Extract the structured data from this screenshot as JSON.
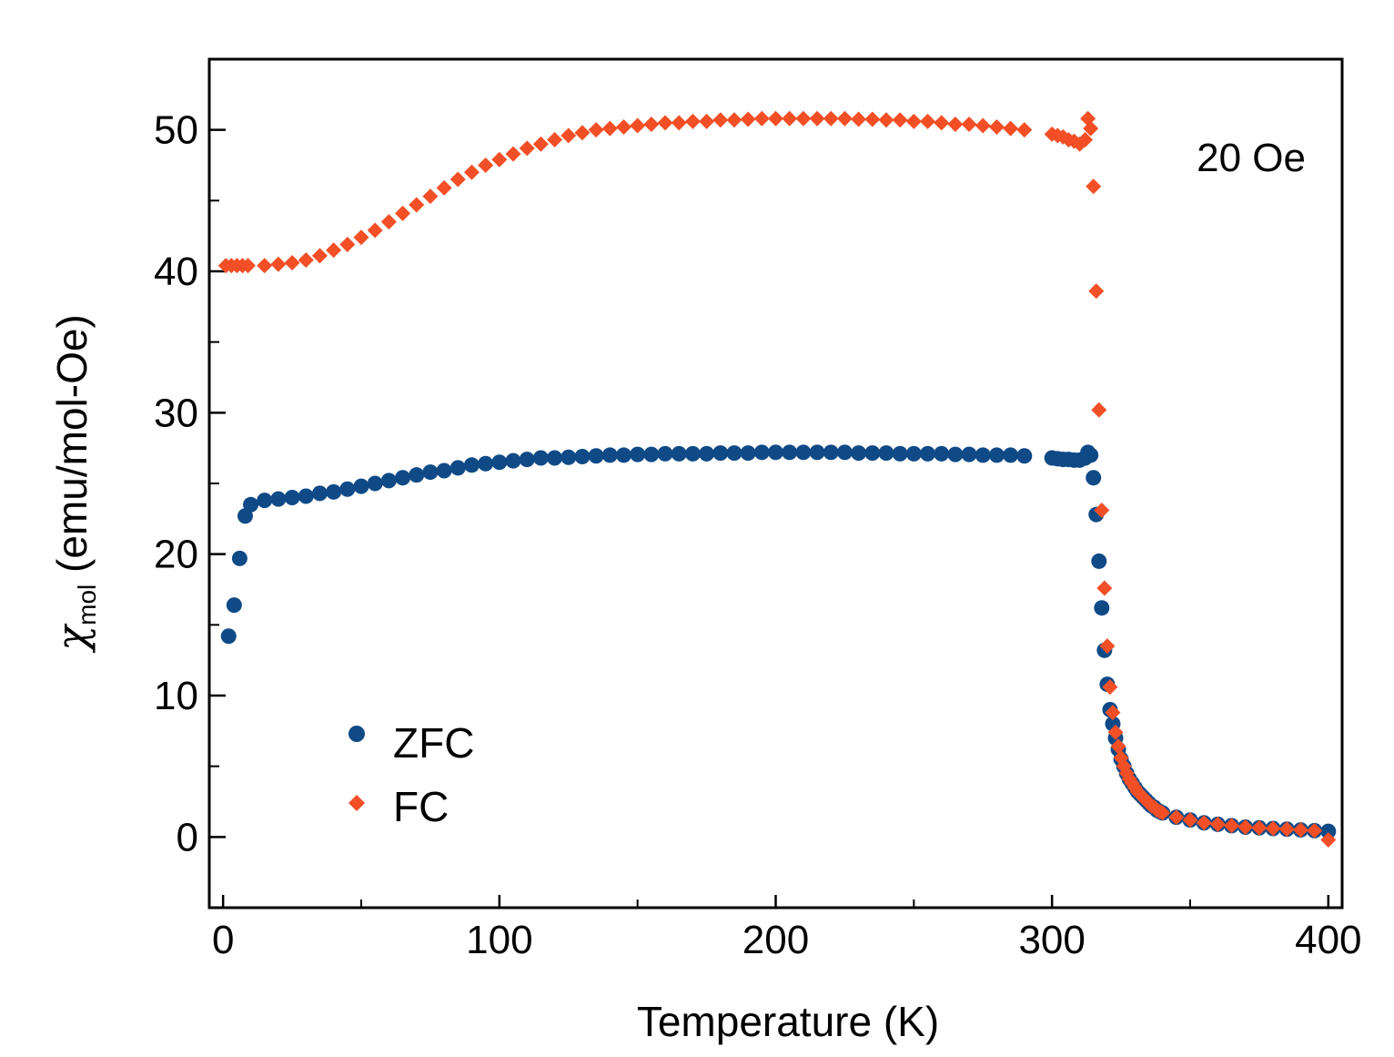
{
  "chart_data": {
    "type": "scatter",
    "title": "",
    "xlabel": "Temperature (K)",
    "ylabel": {
      "symbol": "χ",
      "subscript": "mol",
      "units": " (emu/mol-Oe)"
    },
    "annotation": "20 Oe",
    "xlim": [
      -5,
      405
    ],
    "ylim": [
      -5,
      55
    ],
    "x_ticks": [
      0,
      100,
      200,
      300,
      400
    ],
    "x_tick_labels": [
      "0",
      "100",
      "200",
      "300",
      "400"
    ],
    "x_minor_ticks": [
      50,
      150,
      250,
      350
    ],
    "y_ticks": [
      0,
      10,
      20,
      30,
      40,
      50
    ],
    "y_tick_labels": [
      "0",
      "10",
      "20",
      "30",
      "40",
      "50"
    ],
    "y_minor_ticks": [
      5,
      15,
      25,
      35,
      45
    ],
    "legend_position": "bottom-left",
    "series": [
      {
        "name": "ZFC",
        "marker": "circle",
        "color": "#0f4a87",
        "x": [
          2,
          4,
          6,
          8,
          10,
          15,
          20,
          25,
          30,
          35,
          40,
          45,
          50,
          55,
          60,
          65,
          70,
          75,
          80,
          85,
          90,
          95,
          100,
          105,
          110,
          115,
          120,
          125,
          130,
          135,
          140,
          145,
          150,
          155,
          160,
          165,
          170,
          175,
          180,
          185,
          190,
          195,
          200,
          205,
          210,
          215,
          220,
          225,
          230,
          235,
          240,
          245,
          250,
          255,
          260,
          265,
          270,
          275,
          280,
          285,
          290,
          300,
          302,
          304,
          306,
          308,
          310,
          312,
          313,
          314,
          315,
          316,
          317,
          318,
          319,
          320,
          321,
          322,
          323,
          324,
          325,
          326,
          327,
          328,
          329,
          330,
          331,
          332,
          333,
          334,
          335,
          336,
          337,
          338,
          339,
          340,
          345,
          350,
          355,
          360,
          365,
          370,
          375,
          380,
          385,
          390,
          395,
          400
        ],
        "y": [
          14.2,
          16.4,
          19.7,
          22.7,
          23.5,
          23.8,
          23.9,
          24.0,
          24.1,
          24.3,
          24.4,
          24.6,
          24.8,
          25.0,
          25.2,
          25.4,
          25.6,
          25.8,
          25.9,
          26.1,
          26.3,
          26.4,
          26.5,
          26.6,
          26.7,
          26.8,
          26.8,
          26.85,
          26.9,
          26.95,
          27.0,
          27.0,
          27.05,
          27.05,
          27.1,
          27.1,
          27.1,
          27.1,
          27.15,
          27.15,
          27.15,
          27.2,
          27.2,
          27.2,
          27.2,
          27.2,
          27.2,
          27.2,
          27.15,
          27.15,
          27.15,
          27.1,
          27.1,
          27.1,
          27.1,
          27.05,
          27.05,
          27.0,
          27.0,
          27.0,
          26.95,
          26.8,
          26.75,
          26.7,
          26.7,
          26.65,
          26.65,
          26.8,
          27.2,
          27.0,
          25.4,
          22.8,
          19.5,
          16.2,
          13.2,
          10.8,
          9.0,
          8.0,
          7.0,
          6.2,
          5.5,
          5.0,
          4.5,
          4.1,
          3.8,
          3.5,
          3.2,
          3.0,
          2.8,
          2.6,
          2.4,
          2.2,
          2.1,
          1.9,
          1.8,
          1.7,
          1.4,
          1.2,
          1.0,
          0.9,
          0.8,
          0.7,
          0.65,
          0.6,
          0.55,
          0.5,
          0.45,
          0.4
        ]
      },
      {
        "name": "FC",
        "marker": "diamond",
        "color": "#f24f26",
        "x": [
          1,
          3,
          5,
          7,
          9,
          15,
          20,
          25,
          30,
          35,
          40,
          45,
          50,
          55,
          60,
          65,
          70,
          75,
          80,
          85,
          90,
          95,
          100,
          105,
          110,
          115,
          120,
          125,
          130,
          135,
          140,
          145,
          150,
          155,
          160,
          165,
          170,
          175,
          180,
          185,
          190,
          195,
          200,
          205,
          210,
          215,
          220,
          225,
          230,
          235,
          240,
          245,
          250,
          255,
          260,
          265,
          270,
          275,
          280,
          285,
          290,
          300,
          302,
          304,
          306,
          308,
          310,
          312,
          313,
          314,
          315,
          316,
          317,
          318,
          319,
          320,
          321,
          322,
          323,
          324,
          325,
          326,
          327,
          328,
          329,
          330,
          331,
          332,
          333,
          334,
          335,
          336,
          337,
          338,
          339,
          340,
          345,
          350,
          355,
          360,
          365,
          370,
          375,
          380,
          385,
          390,
          395,
          400
        ],
        "y": [
          40.4,
          40.4,
          40.4,
          40.4,
          40.4,
          40.4,
          40.5,
          40.6,
          40.8,
          41.1,
          41.5,
          41.9,
          42.4,
          42.9,
          43.5,
          44.1,
          44.7,
          45.3,
          45.9,
          46.5,
          47.0,
          47.5,
          47.9,
          48.3,
          48.7,
          49.0,
          49.3,
          49.6,
          49.8,
          50.0,
          50.1,
          50.2,
          50.3,
          50.4,
          50.5,
          50.5,
          50.6,
          50.6,
          50.7,
          50.7,
          50.75,
          50.8,
          50.8,
          50.8,
          50.8,
          50.8,
          50.8,
          50.8,
          50.75,
          50.75,
          50.7,
          50.7,
          50.6,
          50.6,
          50.5,
          50.4,
          50.4,
          50.3,
          50.2,
          50.1,
          50.0,
          49.7,
          49.6,
          49.5,
          49.3,
          49.2,
          49.0,
          49.3,
          50.8,
          50.1,
          46.0,
          38.6,
          30.2,
          23.1,
          17.6,
          13.5,
          10.6,
          8.8,
          7.4,
          6.4,
          5.6,
          5.0,
          4.5,
          4.1,
          3.8,
          3.5,
          3.2,
          3.0,
          2.8,
          2.6,
          2.4,
          2.2,
          2.1,
          1.9,
          1.8,
          1.7,
          1.4,
          1.2,
          1.0,
          0.9,
          0.8,
          0.7,
          0.65,
          0.6,
          0.55,
          0.5,
          0.45,
          -0.2
        ]
      }
    ]
  }
}
